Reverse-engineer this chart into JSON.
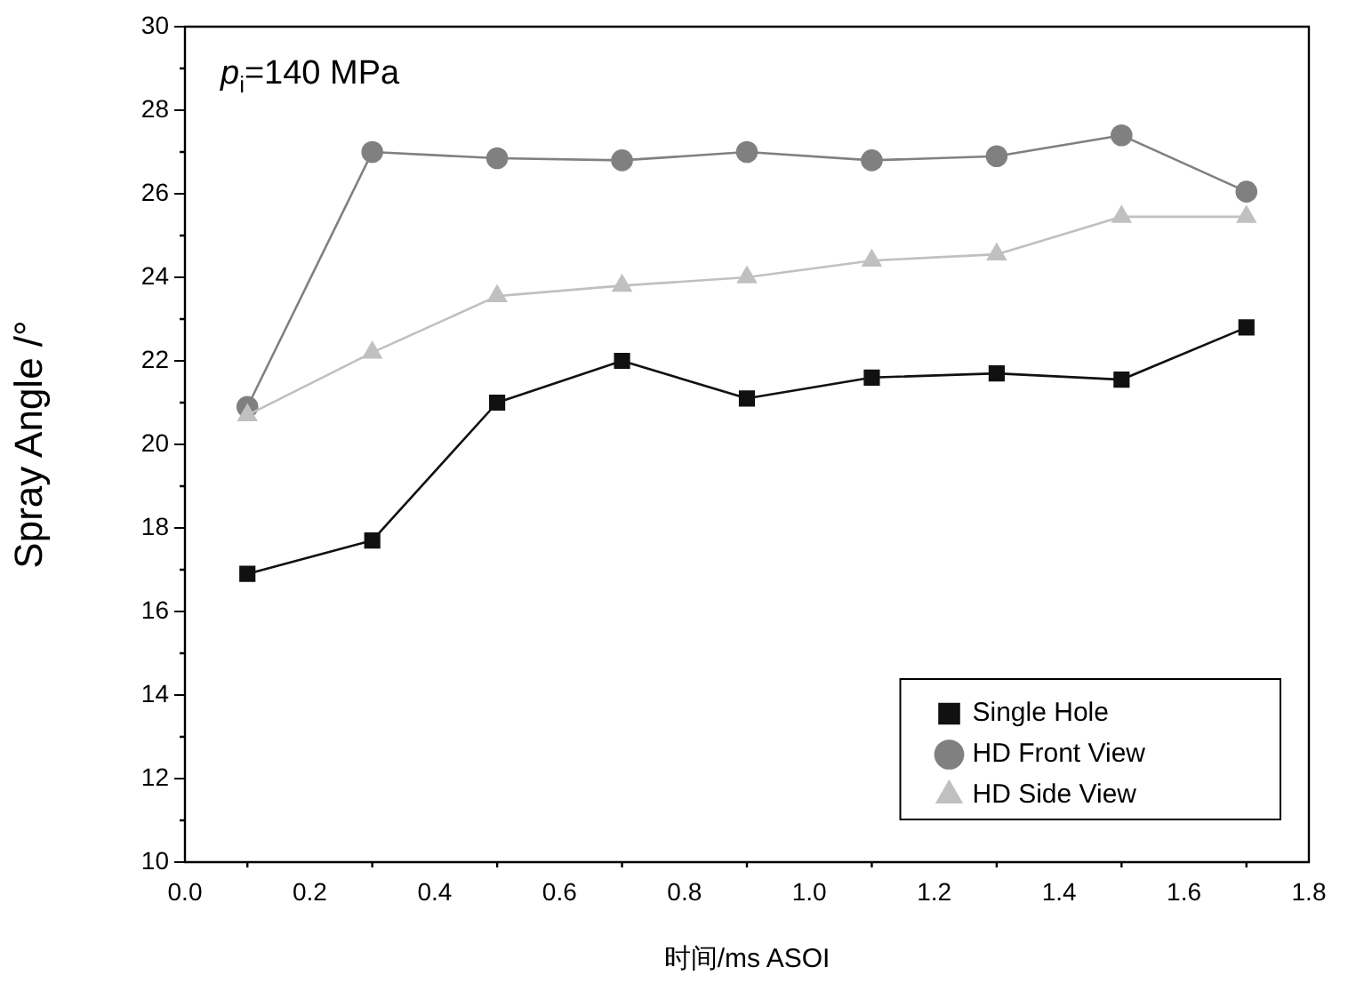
{
  "chart_data": {
    "type": "line",
    "xlabel": "时间/ms ASOI",
    "ylabel": "Spray Angle /°",
    "annotations": [
      "p$_{i}$=140 MPa"
    ],
    "x": [
      0.1,
      0.3,
      0.5,
      0.7,
      0.9,
      1.1,
      1.3,
      1.5,
      1.7
    ],
    "series": [
      {
        "name": "Single Hole",
        "color": "#111111",
        "marker": "square",
        "values": [
          16.9,
          17.7,
          21.0,
          22.0,
          21.1,
          21.6,
          21.7,
          21.55,
          22.8
        ]
      },
      {
        "name": "HD Front View",
        "color": "#808080",
        "marker": "circle",
        "values": [
          20.9,
          27.0,
          26.85,
          26.8,
          27.0,
          26.8,
          26.9,
          27.4,
          26.05
        ]
      },
      {
        "name": "HD Side View",
        "color": "#c0c0c0",
        "marker": "triangle",
        "values": [
          20.7,
          22.2,
          23.55,
          23.8,
          24.0,
          24.4,
          24.55,
          25.45,
          25.45
        ]
      }
    ],
    "xlim": [
      0,
      1.8
    ],
    "xticks": [
      {
        "value": 0,
        "label": "0.0"
      },
      {
        "value": 0.2,
        "label": "0.2"
      },
      {
        "value": 0.4,
        "label": "0.4"
      },
      {
        "value": 0.6,
        "label": "0.6"
      },
      {
        "value": 0.8,
        "label": "0.8"
      },
      {
        "value": 1.0,
        "label": "1.0"
      },
      {
        "value": 1.2,
        "label": "1.2"
      },
      {
        "value": 1.4,
        "label": "1.4"
      },
      {
        "value": 1.6,
        "label": "1.6"
      },
      {
        "value": 1.8,
        "label": "1.8"
      }
    ],
    "ylim": [
      10,
      30
    ],
    "yticks": [
      10,
      12,
      14,
      16,
      18,
      20,
      22,
      24,
      26,
      28,
      30
    ],
    "grid": false,
    "legend": "bottom right",
    "line_style": "solid"
  }
}
